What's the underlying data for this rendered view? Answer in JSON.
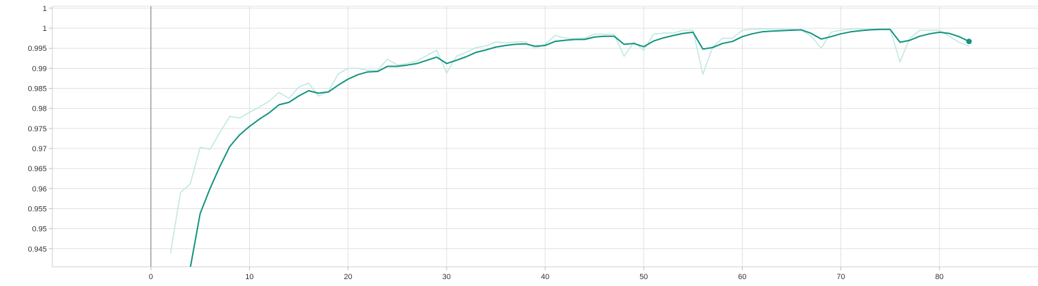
{
  "chart_data": {
    "type": "line",
    "title": "",
    "xlabel": "",
    "ylabel": "",
    "xlim": [
      -10,
      90
    ],
    "ylim": [
      0.9405,
      1.0055
    ],
    "grid": true,
    "x_ticks": [
      0,
      10,
      20,
      30,
      40,
      50,
      60,
      70,
      80
    ],
    "x_tick_labels": [
      "0",
      "10",
      "20",
      "30",
      "40",
      "50",
      "60",
      "70",
      "80"
    ],
    "y_ticks": [
      0.945,
      0.95,
      0.955,
      0.96,
      0.965,
      0.97,
      0.975,
      0.98,
      0.985,
      0.99,
      0.995,
      1.0,
      1.005
    ],
    "y_tick_labels": [
      "0.945",
      "0.95",
      "0.955",
      "0.96",
      "0.965",
      "0.97",
      "0.975",
      "0.98",
      "0.985",
      "0.99",
      "0.995",
      "1",
      "1"
    ],
    "colors": {
      "smoothed": "#12937f",
      "raw": "#c1e8e1",
      "grid": "#e0e0e0",
      "zero_axis": "#9e9e9e"
    },
    "series": [
      {
        "role": "raw",
        "x": [
          2,
          3,
          4,
          5,
          6,
          7,
          8,
          9,
          10,
          11,
          12,
          13,
          14,
          15,
          16,
          17,
          18,
          19,
          20,
          21,
          22,
          23,
          24,
          25,
          26,
          27,
          28,
          29,
          30,
          31,
          32,
          33,
          34,
          35,
          36,
          37,
          38,
          39,
          40,
          41,
          42,
          43,
          44,
          45,
          46,
          47,
          48,
          49,
          50,
          51,
          52,
          53,
          54,
          55,
          56,
          57,
          58,
          59,
          60,
          61,
          62,
          63,
          64,
          65,
          66,
          67,
          68,
          69,
          70,
          71,
          72,
          73,
          74,
          75,
          76,
          77,
          78,
          79,
          80,
          81,
          82,
          83
        ],
        "values": [
          0.944,
          0.959,
          0.9612,
          0.9703,
          0.9698,
          0.974,
          0.978,
          0.9776,
          0.979,
          0.9803,
          0.9818,
          0.984,
          0.9825,
          0.9853,
          0.9863,
          0.9831,
          0.9842,
          0.9886,
          0.99,
          0.99,
          0.9895,
          0.9895,
          0.9923,
          0.9908,
          0.9912,
          0.9918,
          0.9932,
          0.9945,
          0.9888,
          0.993,
          0.994,
          0.9952,
          0.9956,
          0.9966,
          0.9963,
          0.9966,
          0.9966,
          0.995,
          0.996,
          0.9982,
          0.9976,
          0.9973,
          0.9975,
          0.9985,
          0.9985,
          0.9985,
          0.993,
          0.9965,
          0.9945,
          0.9985,
          0.9988,
          0.9988,
          0.9995,
          0.9995,
          0.9885,
          0.9953,
          0.9975,
          0.9975,
          0.9995,
          0.9998,
          0.9998,
          0.9998,
          0.9998,
          0.9998,
          0.9995,
          0.998,
          0.995,
          0.999,
          0.9995,
          0.9998,
          0.9998,
          0.9998,
          0.9998,
          0.9998,
          0.9916,
          0.9975,
          0.9995,
          0.9995,
          0.9995,
          0.998,
          0.9965,
          0.9955
        ]
      },
      {
        "role": "smoothed",
        "x": [
          4,
          5,
          6,
          7,
          8,
          9,
          10,
          11,
          12,
          13,
          14,
          15,
          16,
          17,
          18,
          19,
          20,
          21,
          22,
          23,
          24,
          25,
          26,
          27,
          28,
          29,
          30,
          31,
          32,
          33,
          34,
          35,
          36,
          37,
          38,
          39,
          40,
          41,
          42,
          43,
          44,
          45,
          46,
          47,
          48,
          49,
          50,
          51,
          52,
          53,
          54,
          55,
          56,
          57,
          58,
          59,
          60,
          61,
          62,
          63,
          64,
          65,
          66,
          67,
          68,
          69,
          70,
          71,
          72,
          73,
          74,
          75,
          76,
          77,
          78,
          79,
          80,
          81,
          82,
          83
        ],
        "values": [
          0.9403,
          0.9538,
          0.96,
          0.9655,
          0.9705,
          0.9734,
          0.9755,
          0.9773,
          0.9789,
          0.9809,
          0.9815,
          0.9831,
          0.9844,
          0.9838,
          0.9841,
          0.9858,
          0.9873,
          0.9884,
          0.9891,
          0.9892,
          0.9905,
          0.9905,
          0.9908,
          0.9912,
          0.992,
          0.9928,
          0.9912,
          0.992,
          0.9929,
          0.994,
          0.9946,
          0.9953,
          0.9957,
          0.996,
          0.9961,
          0.9955,
          0.9957,
          0.9967,
          0.997,
          0.9972,
          0.9972,
          0.9978,
          0.998,
          0.998,
          0.996,
          0.9962,
          0.9954,
          0.9968,
          0.9976,
          0.9982,
          0.9987,
          0.999,
          0.9948,
          0.9952,
          0.9962,
          0.9967,
          0.9979,
          0.9986,
          0.9991,
          0.9993,
          0.9994,
          0.9995,
          0.9996,
          0.9987,
          0.9973,
          0.9979,
          0.9986,
          0.9991,
          0.9994,
          0.9996,
          0.9997,
          0.9997,
          0.9965,
          0.997,
          0.998,
          0.9986,
          0.999,
          0.9987,
          0.9979,
          0.9967
        ]
      }
    ]
  }
}
